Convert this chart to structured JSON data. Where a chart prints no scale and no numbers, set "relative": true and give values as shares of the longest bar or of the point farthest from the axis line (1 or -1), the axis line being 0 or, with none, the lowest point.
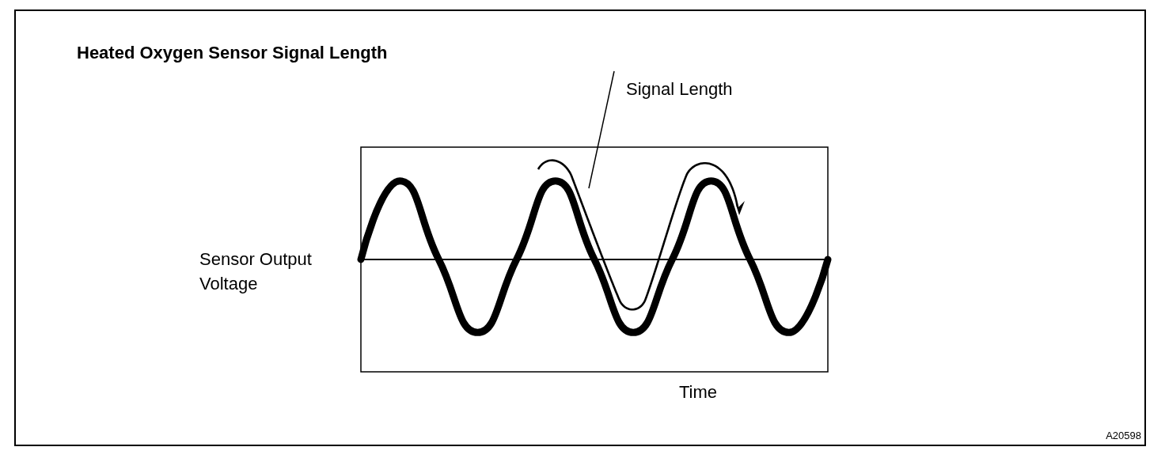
{
  "chart_data": {
    "type": "line",
    "title": "Heated Oxygen Sensor Signal Length",
    "xlabel": "Time",
    "ylabel": "Sensor Output Voltage",
    "annotations": [
      "Signal Length",
      "A20598"
    ],
    "categories": [
      null,
      null,
      null,
      null,
      null,
      null,
      null,
      null,
      null,
      null,
      null,
      null,
      null
    ],
    "series": [
      {
        "color": "#000000",
        "values": [
          0,
          1,
          0,
          -0.93,
          0,
          1,
          0,
          -0.93,
          0,
          1,
          0,
          -0.93,
          0
        ]
      }
    ],
    "relative": true,
    "grid": false,
    "line_style": "solid"
  }
}
